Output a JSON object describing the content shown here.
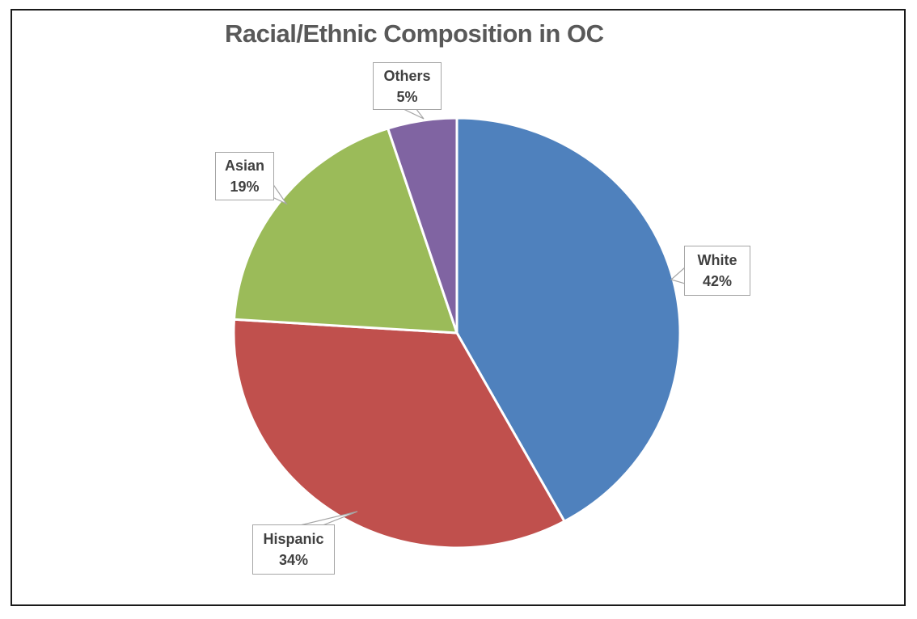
{
  "chart_data": {
    "type": "pie",
    "title": "Racial/Ethnic Composition in OC",
    "direction": "clockwise",
    "start_angle_deg": 0,
    "legend_position": "none",
    "label_style": "callout-box",
    "categories": [
      "White",
      "Hispanic",
      "Asian",
      "Others"
    ],
    "values": [
      42,
      34,
      19,
      5
    ],
    "slices": [
      {
        "label": "White",
        "value": 42,
        "percent_text": "42%",
        "color": "#4F81BD"
      },
      {
        "label": "Hispanic",
        "value": 34,
        "percent_text": "34%",
        "color": "#C0504D"
      },
      {
        "label": "Asian",
        "value": 19,
        "percent_text": "19%",
        "color": "#9BBB59"
      },
      {
        "label": "Others",
        "value": 5,
        "percent_text": "5%",
        "color": "#8064A2"
      }
    ],
    "separator_color": "#FFFFFF"
  },
  "styles": {
    "background": "#FFFFFF",
    "frame_border_color": "#1A1A1A",
    "title_color": "#595959",
    "callout_text_color": "#404040",
    "callout_border_color": "#A6A6A6",
    "callout_bg": "#FFFFFF"
  }
}
